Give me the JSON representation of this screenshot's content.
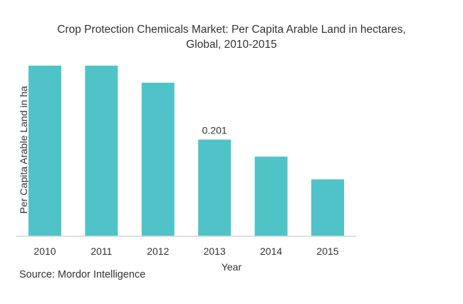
{
  "chart_data": {
    "type": "bar",
    "title_line1": "Crop Protection Chemicals Market: Per Capita Arable Land in hectares,",
    "title_line2": "Global, 2010-2015",
    "xlabel": "Year",
    "ylabel": "Per Capita Arable Land in ha",
    "categories": [
      "2010",
      "2011",
      "2012",
      "2013",
      "2014",
      "2015"
    ],
    "values": [
      0.2023,
      0.2023,
      0.202,
      0.201,
      0.2007,
      0.2003
    ],
    "data_labels": [
      "",
      "",
      "",
      "0.201",
      "",
      ""
    ],
    "ylim": [
      0.1993,
      0.2023
    ],
    "grid": false,
    "legend": "none",
    "bar_color": "#4fc3c7",
    "source": "Source: Mordor Intelligence"
  }
}
